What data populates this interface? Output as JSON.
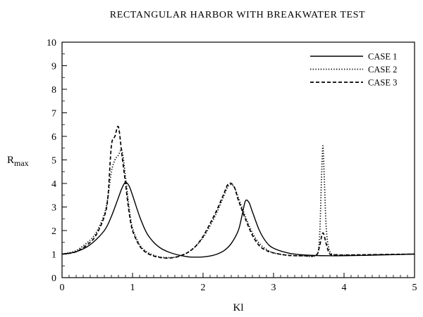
{
  "chart_data": {
    "type": "line",
    "title": "RECTANGULAR HARBOR WITH BREAKWATER TEST",
    "xlabel": "Kl",
    "ylabel": {
      "main": "R",
      "sub": "max"
    },
    "xlim": [
      0,
      5
    ],
    "ylim": [
      0,
      10
    ],
    "xticks": [
      "0",
      "1",
      "2",
      "3",
      "4",
      "5"
    ],
    "yticks": [
      "0",
      "1",
      "2",
      "3",
      "4",
      "5",
      "6",
      "7",
      "8",
      "9",
      "10"
    ],
    "grid": false,
    "legend_position": "top-right",
    "series": [
      {
        "name": "CASE 1",
        "style": "solid",
        "color": "#000000",
        "x": [
          0.0,
          0.2,
          0.4,
          0.6,
          0.7,
          0.8,
          0.85,
          0.9,
          0.95,
          1.0,
          1.1,
          1.2,
          1.3,
          1.4,
          1.5,
          1.6,
          1.7,
          1.8,
          1.9,
          2.0,
          2.1,
          2.2,
          2.3,
          2.4,
          2.5,
          2.55,
          2.6,
          2.65,
          2.7,
          2.8,
          2.9,
          3.0,
          3.2,
          3.4,
          3.6,
          3.8,
          4.0,
          4.5,
          5.0
        ],
        "y": [
          1.0,
          1.1,
          1.4,
          2.0,
          2.6,
          3.4,
          3.8,
          4.05,
          3.9,
          3.5,
          2.6,
          1.9,
          1.5,
          1.25,
          1.1,
          1.0,
          0.93,
          0.88,
          0.87,
          0.88,
          0.92,
          1.0,
          1.15,
          1.45,
          2.0,
          2.6,
          3.25,
          3.2,
          2.8,
          2.0,
          1.5,
          1.25,
          1.05,
          0.97,
          0.94,
          0.93,
          0.93,
          0.96,
          1.0
        ]
      },
      {
        "name": "CASE 2",
        "style": "dotted",
        "color": "#000000",
        "x": [
          0.0,
          0.2,
          0.4,
          0.5,
          0.6,
          0.65,
          0.7,
          0.75,
          0.8,
          0.85,
          0.9,
          0.95,
          1.0,
          1.1,
          1.2,
          1.3,
          1.4,
          1.5,
          1.6,
          1.7,
          1.8,
          1.9,
          2.0,
          2.1,
          2.2,
          2.3,
          2.35,
          2.4,
          2.45,
          2.5,
          2.6,
          2.7,
          2.8,
          2.9,
          3.0,
          3.2,
          3.4,
          3.6,
          3.65,
          3.68,
          3.7,
          3.72,
          3.75,
          3.8,
          3.9,
          4.0,
          4.5,
          5.0
        ],
        "y": [
          1.0,
          1.15,
          1.6,
          2.0,
          2.7,
          3.4,
          4.5,
          5.0,
          5.2,
          5.4,
          4.3,
          3.0,
          2.1,
          1.4,
          1.1,
          0.95,
          0.87,
          0.85,
          0.87,
          0.95,
          1.1,
          1.35,
          1.7,
          2.2,
          2.8,
          3.5,
          3.85,
          3.95,
          3.8,
          3.4,
          2.6,
          1.9,
          1.45,
          1.2,
          1.05,
          0.95,
          0.93,
          0.95,
          1.6,
          4.2,
          5.6,
          4.2,
          2.0,
          1.1,
          0.97,
          0.96,
          0.98,
          1.0
        ]
      },
      {
        "name": "CASE 3",
        "style": "dashed",
        "color": "#000000",
        "x": [
          0.0,
          0.2,
          0.4,
          0.5,
          0.6,
          0.65,
          0.7,
          0.75,
          0.8,
          0.85,
          0.9,
          0.95,
          1.0,
          1.1,
          1.2,
          1.3,
          1.4,
          1.5,
          1.6,
          1.7,
          1.8,
          1.9,
          2.0,
          2.1,
          2.2,
          2.3,
          2.35,
          2.4,
          2.45,
          2.5,
          2.6,
          2.7,
          2.8,
          2.9,
          3.0,
          3.2,
          3.4,
          3.6,
          3.65,
          3.7,
          3.75,
          3.8,
          3.9,
          4.0,
          4.5,
          5.0
        ],
        "y": [
          1.0,
          1.1,
          1.5,
          1.9,
          2.6,
          3.4,
          5.6,
          6.0,
          6.4,
          5.2,
          4.0,
          2.8,
          2.0,
          1.35,
          1.05,
          0.92,
          0.85,
          0.83,
          0.86,
          0.95,
          1.1,
          1.35,
          1.75,
          2.3,
          2.9,
          3.6,
          3.95,
          4.0,
          3.8,
          3.3,
          2.5,
          1.8,
          1.35,
          1.15,
          1.05,
          0.95,
          0.93,
          0.95,
          1.3,
          1.9,
          1.4,
          1.0,
          0.97,
          0.96,
          0.98,
          1.0
        ]
      }
    ]
  }
}
